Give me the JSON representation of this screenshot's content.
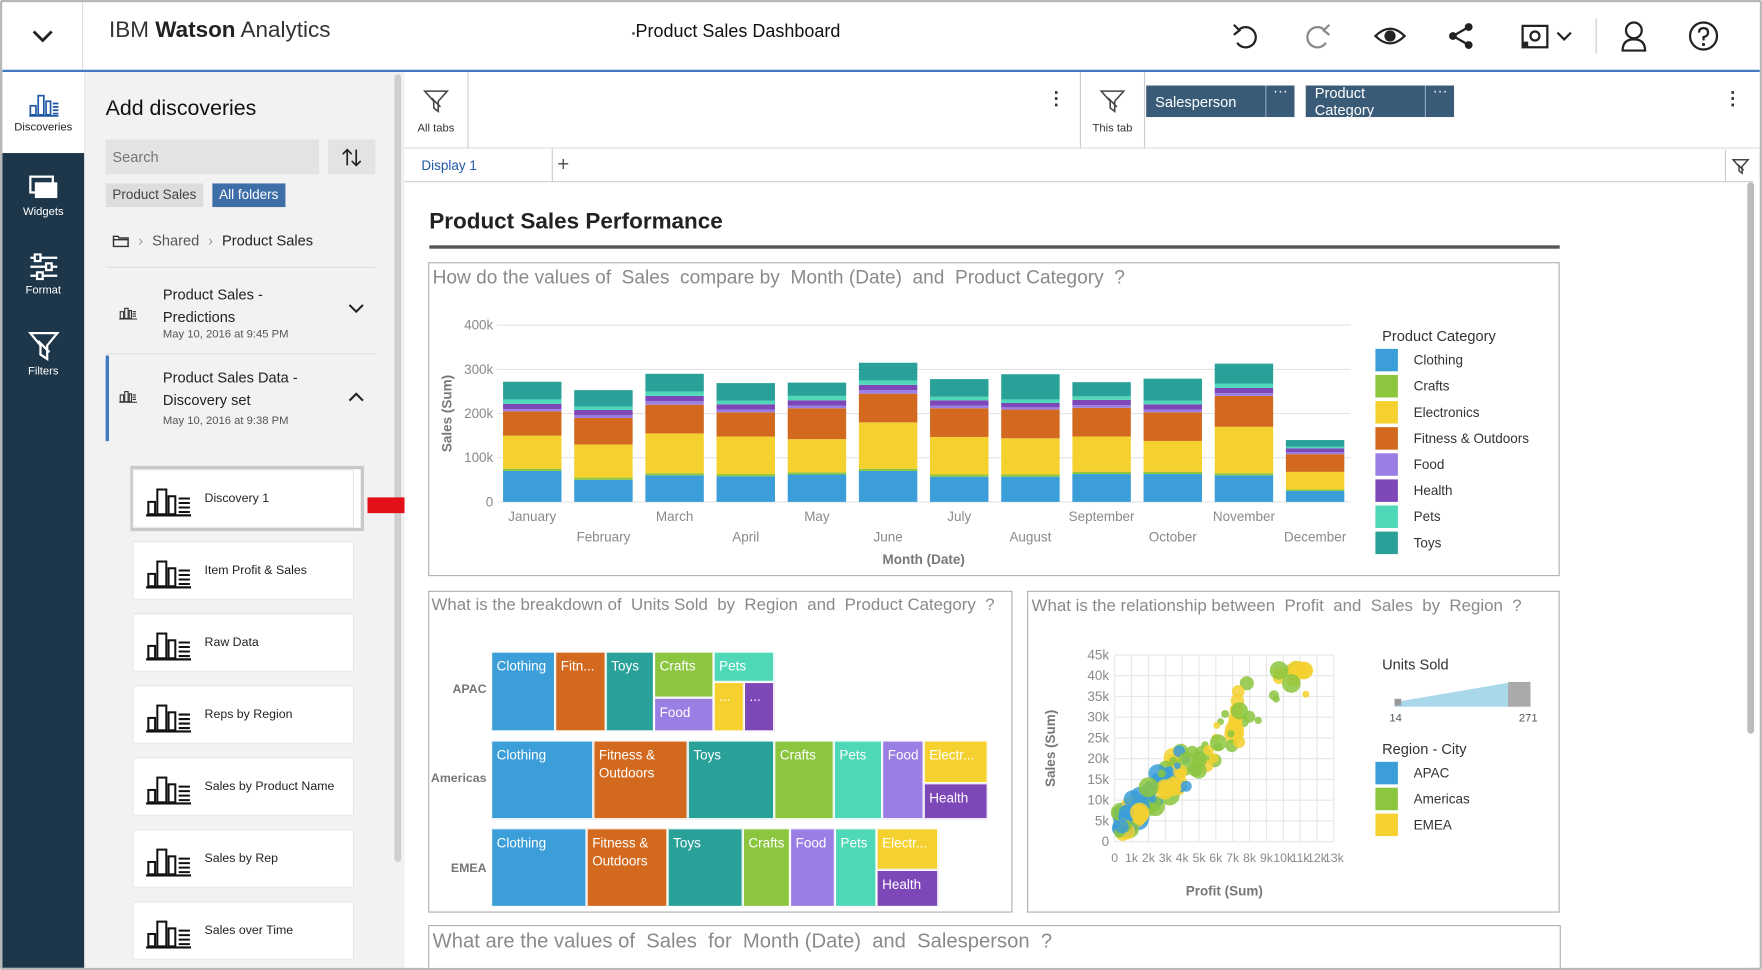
{
  "app": {
    "brand_prefix": "IBM",
    "brand_name": "Watson",
    "brand_suffix": "Analytics",
    "doc_title": "Product Sales Dashboard",
    "doc_title_prefix": "•"
  },
  "rail": [
    {
      "label": "Discoveries",
      "icon": "discoveries-icon"
    },
    {
      "label": "Widgets",
      "icon": "widgets-icon"
    },
    {
      "label": "Format",
      "icon": "format-icon"
    },
    {
      "label": "Filters",
      "icon": "filter-icon"
    }
  ],
  "panel": {
    "title": "Add discoveries",
    "search_placeholder": "Search",
    "chips": [
      "Product Sales",
      "All folders"
    ],
    "breadcrumb": [
      "Shared",
      "Product Sales"
    ],
    "folders": [
      {
        "title": "Product Sales - Predictions",
        "date": "May 10, 2016 at 9:45 PM"
      },
      {
        "title": "Product Sales Data - Discovery set",
        "date": "May 10, 2016 at 9:38 PM"
      }
    ],
    "discoveries": [
      "Discovery 1",
      "Item Profit & Sales",
      "Raw Data",
      "Reps by Region",
      "Sales by Product Name",
      "Sales by Rep",
      "Sales over Time"
    ]
  },
  "filterbar": {
    "all_tabs": "All tabs",
    "this_tab": "This tab",
    "filters": [
      "Salesperson",
      "Product Category"
    ],
    "more": "···"
  },
  "tabs": {
    "active": "Display 1",
    "add": "+"
  },
  "dashboard": {
    "title": "Product Sales Performance",
    "q1": "How do the values of  Sales  compare by  Month (Date)  and  Product Category  ?",
    "q2": "What is the breakdown of  Units Sold  by  Region  and  Product Category  ?",
    "q3": "What is the relationship between  Profit  and  Sales  by  Region  ?",
    "q4": "What are the values of  Sales  for  Month (Date)  and  Salesperson  ?"
  },
  "colors": {
    "Clothing": "#3b9ed8",
    "Crafts": "#8cc63f",
    "Electronics": "#f5d130",
    "Fitness & Outdoors": "#d2691e",
    "Food": "#9b7ee3",
    "Health": "#7d47b8",
    "Pets": "#4ed8b8",
    "Toys": "#2aa198"
  },
  "chart_data": [
    {
      "type": "bar",
      "stacked": true,
      "title": "How do the values of Sales compare by Month (Date) and Product Category ?",
      "xlabel": "Month (Date)",
      "ylabel": "Sales (Sum)",
      "ylim": [
        0,
        400000
      ],
      "yticks": [
        "0",
        "100k",
        "200k",
        "300k",
        "400k"
      ],
      "categories": [
        "January",
        "February",
        "March",
        "April",
        "May",
        "June",
        "July",
        "August",
        "September",
        "October",
        "November",
        "December"
      ],
      "legend_title": "Product Category",
      "legend_position": "right",
      "series": [
        {
          "name": "Clothing",
          "values": [
            70000,
            50000,
            60000,
            58000,
            62000,
            70000,
            57000,
            57000,
            63000,
            63000,
            60000,
            25000
          ]
        },
        {
          "name": "Crafts",
          "values": [
            5000,
            5000,
            5000,
            5000,
            5000,
            5000,
            5000,
            5000,
            5000,
            5000,
            5000,
            3000
          ]
        },
        {
          "name": "Electronics",
          "values": [
            75000,
            75000,
            90000,
            85000,
            75000,
            105000,
            85000,
            82000,
            80000,
            70000,
            105000,
            40000
          ]
        },
        {
          "name": "Fitness & Outdoors",
          "values": [
            55000,
            60000,
            65000,
            55000,
            70000,
            65000,
            65000,
            65000,
            65000,
            65000,
            70000,
            40000
          ]
        },
        {
          "name": "Food",
          "values": [
            5000,
            6000,
            8000,
            6000,
            6000,
            8000,
            6000,
            5000,
            6000,
            6000,
            6000,
            5000
          ]
        },
        {
          "name": "Health",
          "values": [
            12000,
            12000,
            12000,
            12000,
            12000,
            12000,
            12000,
            10000,
            12000,
            12000,
            12000,
            8000
          ]
        },
        {
          "name": "Pets",
          "values": [
            10000,
            8000,
            10000,
            8000,
            10000,
            10000,
            8000,
            8000,
            8000,
            8000,
            10000,
            4000
          ]
        },
        {
          "name": "Toys",
          "values": [
            40000,
            37000,
            40000,
            40000,
            30000,
            40000,
            40000,
            57000,
            32000,
            50000,
            45000,
            15000
          ]
        }
      ]
    },
    {
      "type": "heatmap",
      "subtype": "treemap",
      "title": "What is the breakdown of Units Sold by Region and Product Category ?",
      "regions": [
        "APAC",
        "Americas",
        "EMEA"
      ],
      "groups": [
        {
          "region": "APAC",
          "cells": [
            "Clothing",
            "Fitn...",
            "Toys",
            "Crafts",
            "Pets",
            "Food",
            "...",
            "..."
          ]
        },
        {
          "region": "Americas",
          "cells": [
            "Clothing",
            "Fitness & Outdoors",
            "Toys",
            "Crafts",
            "Pets",
            "Food",
            "Electr...",
            "Health"
          ]
        },
        {
          "region": "EMEA",
          "cells": [
            "Clothing",
            "Fitness & Outdoors",
            "Toys",
            "Crafts",
            "Food",
            "Pets",
            "Electr...",
            "Health"
          ]
        }
      ]
    },
    {
      "type": "scatter",
      "title": "What is the relationship between Profit and Sales by Region ?",
      "xlabel": "Profit (Sum)",
      "ylabel": "Sales (Sum)",
      "xticks": [
        "0",
        "1k",
        "2k",
        "3k",
        "4k",
        "5k",
        "6k",
        "7k",
        "8k",
        "9k",
        "10k",
        "11k",
        "12k",
        "13k"
      ],
      "yticks": [
        "0",
        "5k",
        "10k",
        "15k",
        "20k",
        "25k",
        "30k",
        "35k",
        "40k",
        "45k"
      ],
      "size_legend": {
        "title": "Units Sold",
        "min": "14",
        "max": "271"
      },
      "legend_title": "Region - City",
      "series": [
        {
          "name": "APAC"
        },
        {
          "name": "Americas"
        },
        {
          "name": "EMEA"
        }
      ]
    }
  ]
}
